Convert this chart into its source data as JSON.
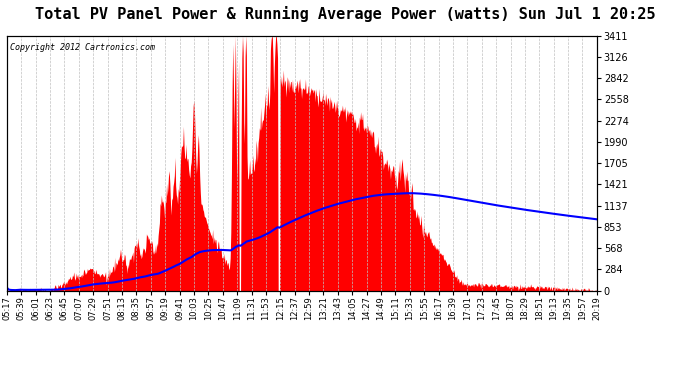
{
  "title": "Total PV Panel Power & Running Average Power (watts) Sun Jul 1 20:25",
  "copyright": "Copyright 2012 Cartronics.com",
  "y_ticks": [
    0.0,
    284.2,
    568.4,
    852.7,
    1136.9,
    1421.1,
    1705.3,
    1989.5,
    2273.8,
    2558.0,
    2842.2,
    3126.4,
    3410.6
  ],
  "x_labels": [
    "05:17",
    "05:39",
    "06:01",
    "06:23",
    "06:45",
    "07:07",
    "07:29",
    "07:51",
    "08:13",
    "08:35",
    "08:57",
    "09:19",
    "09:41",
    "10:03",
    "10:25",
    "10:47",
    "11:09",
    "11:31",
    "11:53",
    "12:15",
    "12:37",
    "12:59",
    "13:21",
    "13:43",
    "14:05",
    "14:27",
    "14:49",
    "15:11",
    "15:33",
    "15:55",
    "16:17",
    "16:39",
    "17:01",
    "17:23",
    "17:45",
    "18:07",
    "18:29",
    "18:51",
    "19:13",
    "19:35",
    "19:57",
    "20:19"
  ],
  "bg_color": "#ffffff",
  "fill_color": "#ff0000",
  "line_color": "#0000ff",
  "grid_color": "#c0c0c0",
  "title_fontsize": 11,
  "ylim": [
    0.0,
    3410.6
  ],
  "n_points": 910
}
